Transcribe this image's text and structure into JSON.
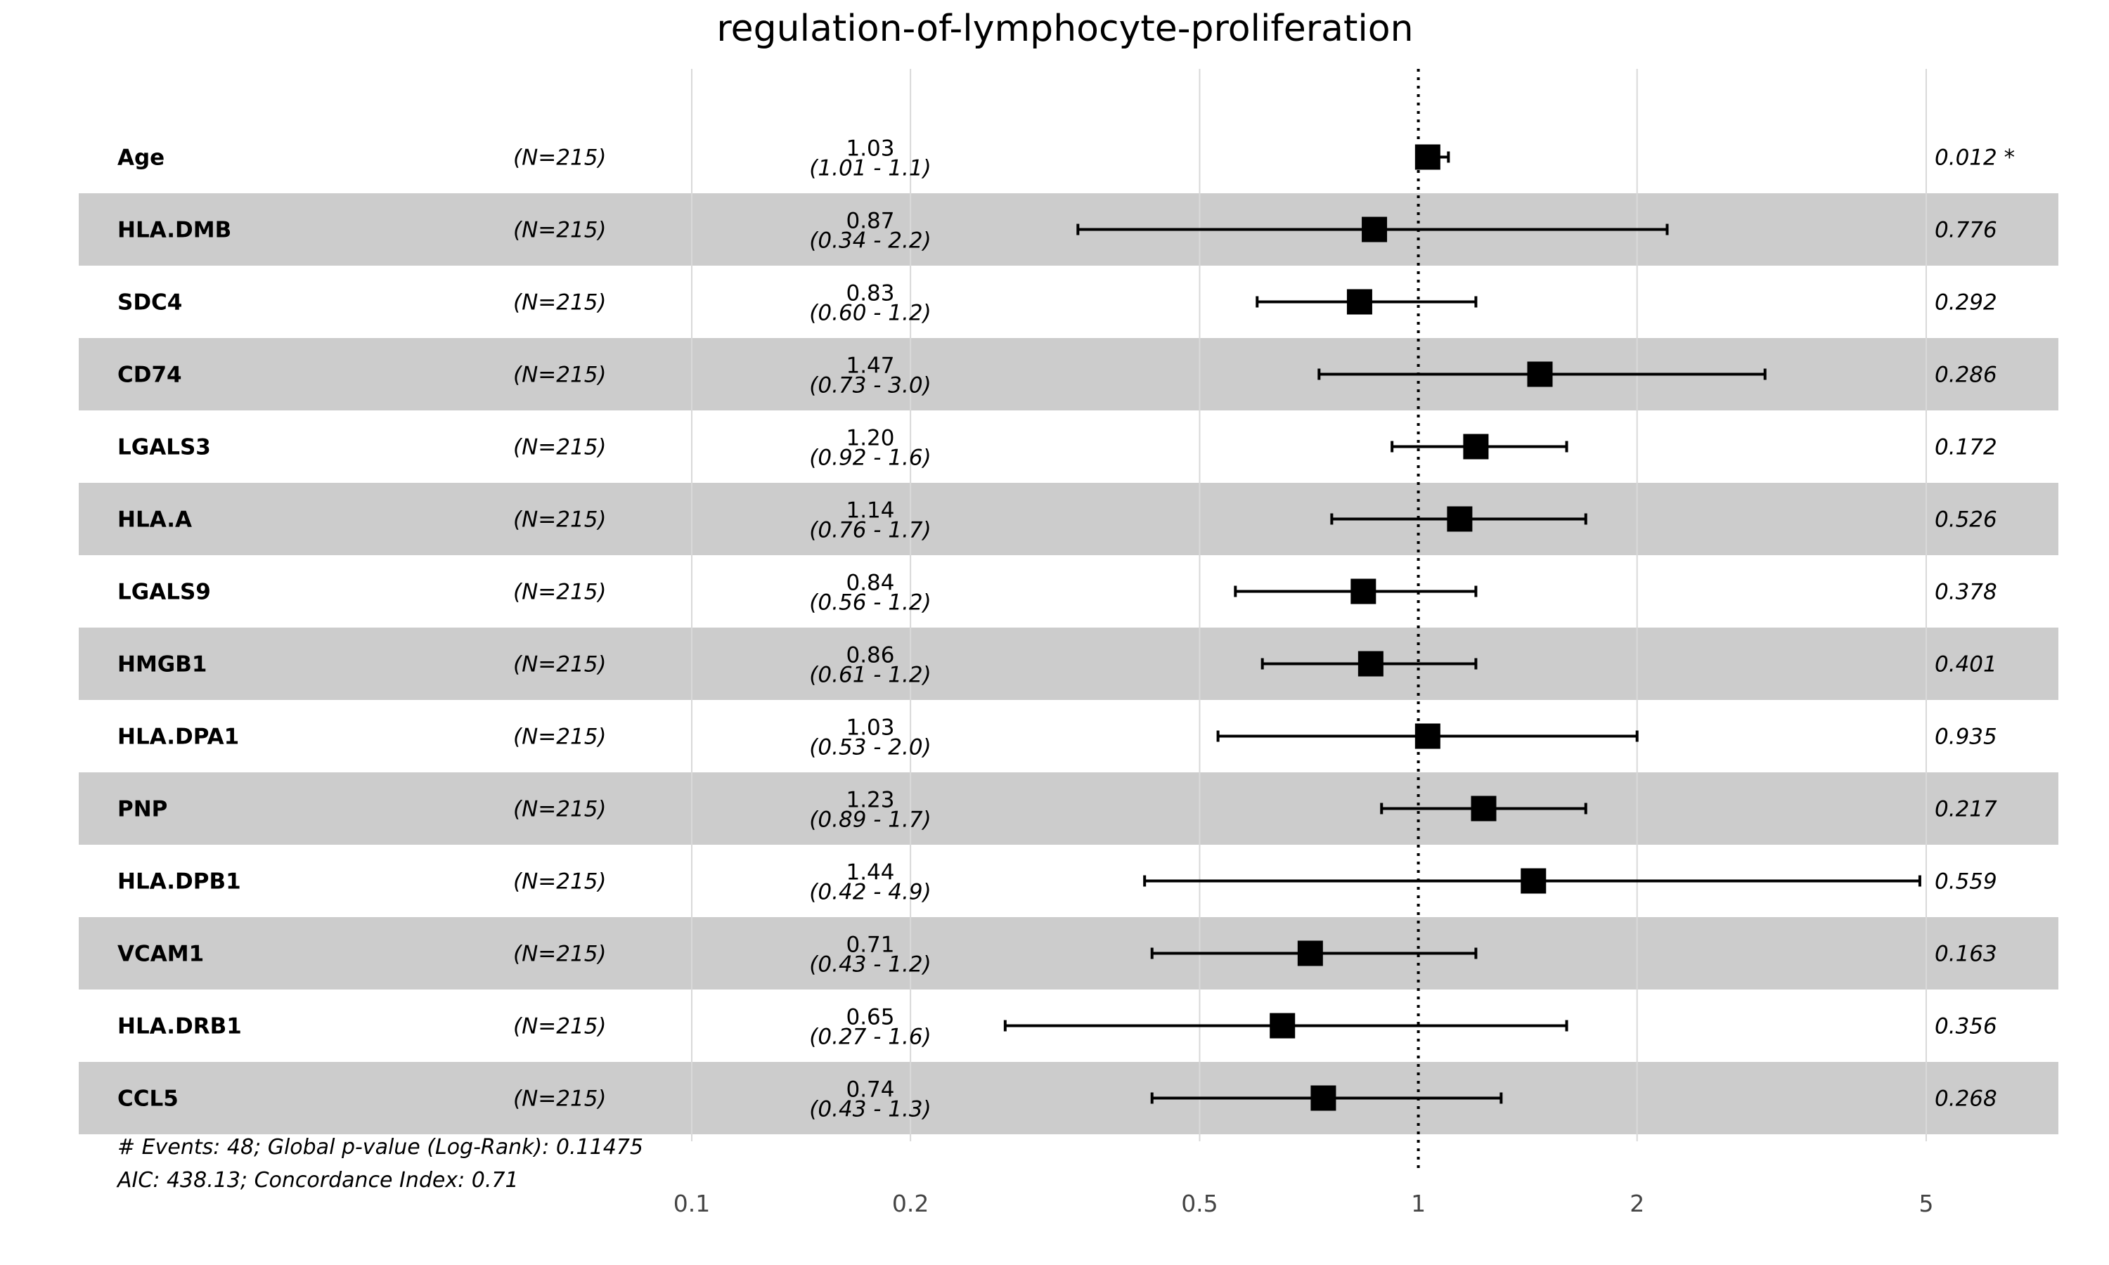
{
  "chart_data": {
    "type": "forest",
    "title": "regulation-of-lymphocyte-proliferation",
    "x_scale": "log",
    "xlim": [
      0.07,
      7.5
    ],
    "reference_line": 1,
    "x_ticks": [
      0.1,
      0.2,
      0.5,
      1,
      2,
      5
    ],
    "x_tick_labels": [
      "0.1",
      "0.2",
      "0.5",
      "1",
      "2",
      "5"
    ],
    "grid": "vertical",
    "rows": [
      {
        "variable": "Age",
        "n": "(N=215)",
        "hr": 1.03,
        "lower": 1.01,
        "upper": 1.1,
        "hr_label": "1.03",
        "ci_label": "(1.01 - 1.1)",
        "p_label": "0.012 *"
      },
      {
        "variable": "HLA.DMB",
        "n": "(N=215)",
        "hr": 0.87,
        "lower": 0.34,
        "upper": 2.2,
        "hr_label": "0.87",
        "ci_label": "(0.34 - 2.2)",
        "p_label": "0.776"
      },
      {
        "variable": "SDC4",
        "n": "(N=215)",
        "hr": 0.83,
        "lower": 0.6,
        "upper": 1.2,
        "hr_label": "0.83",
        "ci_label": "(0.60 - 1.2)",
        "p_label": "0.292"
      },
      {
        "variable": "CD74",
        "n": "(N=215)",
        "hr": 1.47,
        "lower": 0.73,
        "upper": 3.0,
        "hr_label": "1.47",
        "ci_label": "(0.73 - 3.0)",
        "p_label": "0.286"
      },
      {
        "variable": "LGALS3",
        "n": "(N=215)",
        "hr": 1.2,
        "lower": 0.92,
        "upper": 1.6,
        "hr_label": "1.20",
        "ci_label": "(0.92 - 1.6)",
        "p_label": "0.172"
      },
      {
        "variable": "HLA.A",
        "n": "(N=215)",
        "hr": 1.14,
        "lower": 0.76,
        "upper": 1.7,
        "hr_label": "1.14",
        "ci_label": "(0.76 - 1.7)",
        "p_label": "0.526"
      },
      {
        "variable": "LGALS9",
        "n": "(N=215)",
        "hr": 0.84,
        "lower": 0.56,
        "upper": 1.2,
        "hr_label": "0.84",
        "ci_label": "(0.56 - 1.2)",
        "p_label": "0.378"
      },
      {
        "variable": "HMGB1",
        "n": "(N=215)",
        "hr": 0.86,
        "lower": 0.61,
        "upper": 1.2,
        "hr_label": "0.86",
        "ci_label": "(0.61 - 1.2)",
        "p_label": "0.401"
      },
      {
        "variable": "HLA.DPA1",
        "n": "(N=215)",
        "hr": 1.03,
        "lower": 0.53,
        "upper": 2.0,
        "hr_label": "1.03",
        "ci_label": "(0.53 - 2.0)",
        "p_label": "0.935"
      },
      {
        "variable": "PNP",
        "n": "(N=215)",
        "hr": 1.23,
        "lower": 0.89,
        "upper": 1.7,
        "hr_label": "1.23",
        "ci_label": "(0.89 - 1.7)",
        "p_label": "0.217"
      },
      {
        "variable": "HLA.DPB1",
        "n": "(N=215)",
        "hr": 1.44,
        "lower": 0.42,
        "upper": 4.9,
        "hr_label": "1.44",
        "ci_label": "(0.42 - 4.9)",
        "p_label": "0.559"
      },
      {
        "variable": "VCAM1",
        "n": "(N=215)",
        "hr": 0.71,
        "lower": 0.43,
        "upper": 1.2,
        "hr_label": "0.71",
        "ci_label": "(0.43 - 1.2)",
        "p_label": "0.163"
      },
      {
        "variable": "HLA.DRB1",
        "n": "(N=215)",
        "hr": 0.65,
        "lower": 0.27,
        "upper": 1.6,
        "hr_label": "0.65",
        "ci_label": "(0.27 - 1.6)",
        "p_label": "0.356"
      },
      {
        "variable": "CCL5",
        "n": "(N=215)",
        "hr": 0.74,
        "lower": 0.43,
        "upper": 1.3,
        "hr_label": "0.74",
        "ci_label": "(0.43 - 1.3)",
        "p_label": "0.268"
      }
    ],
    "footer": [
      "# Events: 48; Global p-value (Log-Rank): 0.11475",
      "AIC: 438.13; Concordance Index: 0.71"
    ],
    "colors": {
      "stripe": "#cccccc",
      "grid": "#d9d9d9",
      "marker": "#000000"
    }
  }
}
